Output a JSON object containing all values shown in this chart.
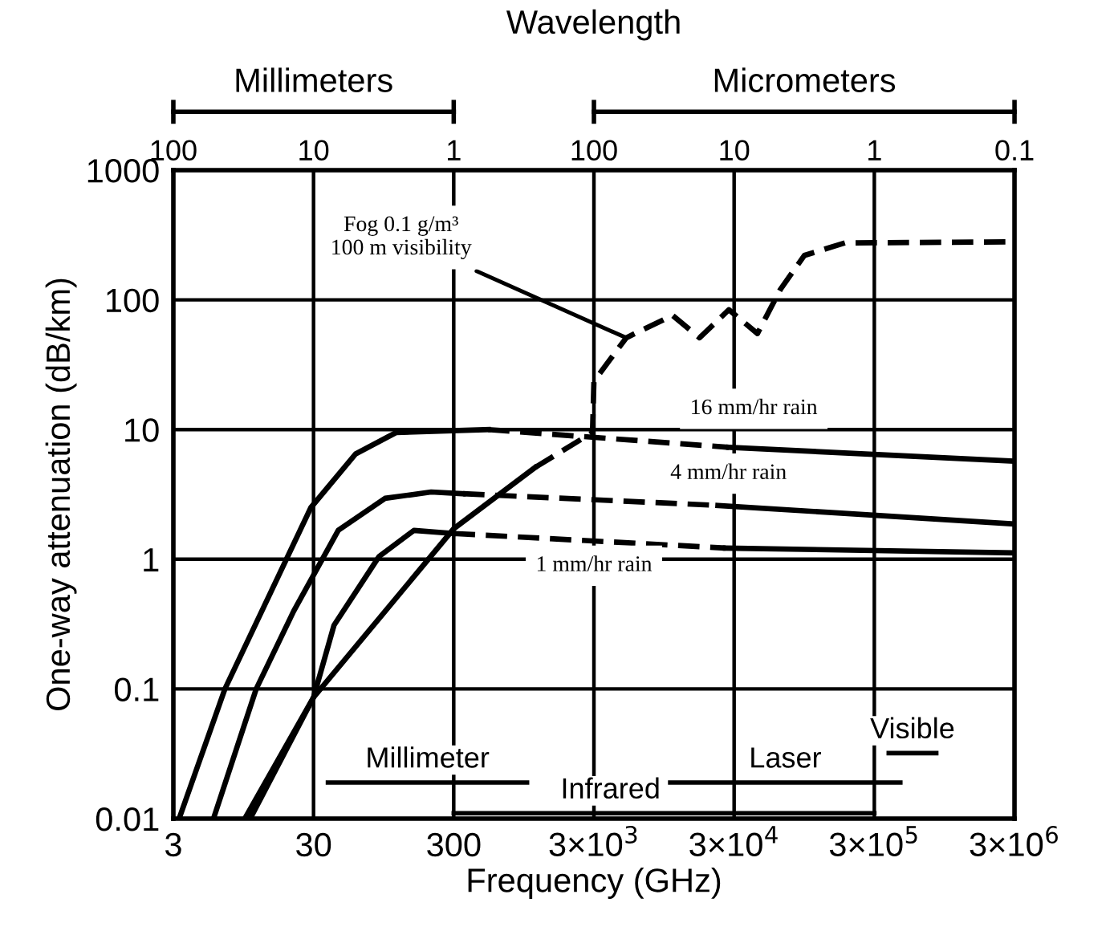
{
  "chart_data": {
    "type": "line",
    "xlabel": "Frequency (GHz)",
    "ylabel": "One-way attenuation (dB/km)",
    "log": "xy",
    "grid": true,
    "xlim": [
      3,
      3000000
    ],
    "xticks": [
      3,
      30,
      300,
      {
        "value": 3000,
        "label": "3×10$^{3}$"
      },
      {
        "value": 30000,
        "label": "3×10$^{4}$"
      },
      {
        "value": 300000,
        "label": "3×10$^{5}$"
      },
      {
        "value": 3000000,
        "label": "3×10$^{6}$"
      }
    ],
    "ylim": [
      0.01,
      1000
    ],
    "yticks": [
      0.01,
      0.1,
      1,
      10,
      100,
      1000
    ],
    "series": [
      {
        "color": "#000000",
        "line_style": "solid",
        "x": [
          3.3,
          7,
          28.7,
          60,
          117,
          528
        ],
        "values": [
          0.01,
          0.1,
          2.5,
          6.5,
          9.5,
          10
        ]
      },
      {
        "color": "#000000",
        "line_style": "dashed",
        "x": [
          528,
          27500
        ],
        "values": [
          10,
          7.3
        ]
      },
      {
        "color": "#000000",
        "line_style": "solid",
        "x": [
          27500,
          3000000
        ],
        "values": [
          7.3,
          5.7
        ]
      },
      {
        "color": "#000000",
        "line_style": "solid",
        "x": [
          5.8,
          11.7,
          21.7,
          45,
          97,
          207,
          350
        ],
        "values": [
          0.01,
          0.1,
          0.4,
          1.67,
          2.95,
          3.3,
          3.2
        ]
      },
      {
        "color": "#000000",
        "line_style": "dashed",
        "x": [
          350,
          23000
        ],
        "values": [
          3.2,
          2.6
        ]
      },
      {
        "color": "#000000",
        "line_style": "solid",
        "x": [
          23000,
          3000000
        ],
        "values": [
          2.6,
          1.87
        ]
      },
      {
        "color": "#000000",
        "line_style": "solid",
        "x": [
          9.7,
          30,
          42,
          88,
          156,
          300
        ],
        "values": [
          0.01,
          0.086,
          0.31,
          1.05,
          1.67,
          1.58
        ]
      },
      {
        "color": "#000000",
        "line_style": "dashed",
        "x": [
          300,
          26000
        ],
        "values": [
          1.58,
          1.22
        ]
      },
      {
        "color": "#000000",
        "line_style": "solid",
        "x": [
          26000,
          3000000
        ],
        "values": [
          1.22,
          1.12
        ]
      },
      {
        "color": "#000000",
        "line_style": "solid",
        "x": [
          10.6,
          30,
          300,
          1140
        ],
        "values": [
          0.01,
          0.086,
          1.72,
          5.1
        ]
      },
      {
        "name": "Millimeter",
        "color": "#000000",
        "line_style": "solid",
        "x": [
          38,
          1000
        ],
        "values": [
          0.019,
          0.019
        ]
      },
      {
        "name": "Infrared",
        "color": "#000000",
        "line_style": "solid",
        "x": [
          300,
          300000
        ],
        "values": [
          0.011,
          0.011
        ]
      },
      {
        "name": "Laser",
        "color": "#000000",
        "line_style": "solid",
        "x": [
          10500,
          460000
        ],
        "values": [
          0.019,
          0.019
        ]
      },
      {
        "name": "Visible",
        "color": "#000000",
        "line_style": "solid",
        "x": [
          380000,
          830000
        ],
        "values": [
          0.032,
          0.032
        ]
      },
      {
        "color": "#000000",
        "line_style": "dashed",
        "x": [
          1140,
          2930,
          3000,
          5100,
          10900,
          17000,
          27500,
          44000,
          64000,
          95000,
          185000,
          3000000
        ],
        "values": [
          5.1,
          9.5,
          23.6,
          51,
          76,
          51,
          84,
          55,
          120,
          220,
          275,
          280
        ]
      }
    ],
    "annotations": [
      {
        "text": "Fog 0.1 g/m³\n100 m visibility",
        "x": 5100,
        "y": 51
      },
      "16 mm/hr rain",
      "4 mm/hr rain",
      "1 mm/hr rain",
      "Millimeters",
      "Micrometers",
      "100",
      "10",
      "1",
      "100",
      "10",
      "1",
      "0.1",
      "Wavelength"
    ]
  }
}
